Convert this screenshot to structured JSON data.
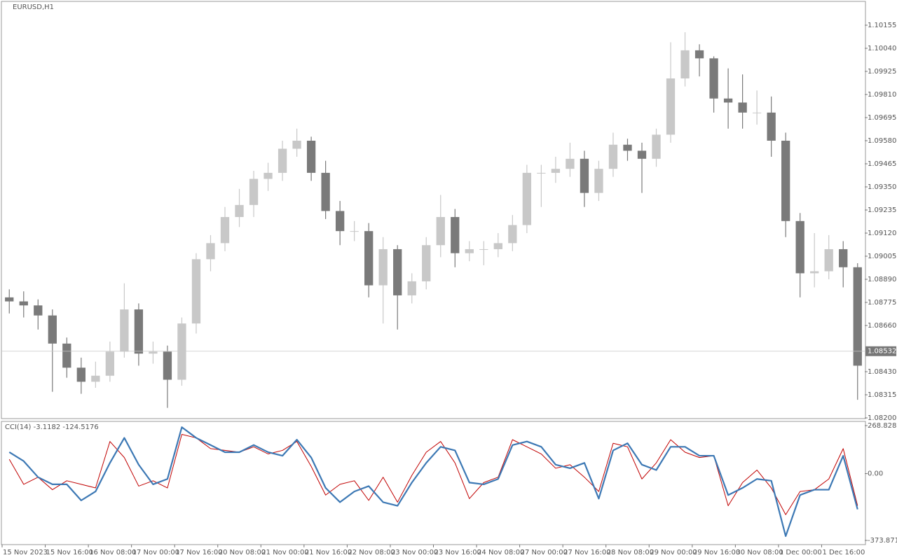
{
  "chart_data": [
    {
      "type": "candlestick",
      "title": "EURUSD,H1",
      "candles": [
        [
          1.088,
          1.0884,
          1.0872,
          1.0878
        ],
        [
          1.0878,
          1.0883,
          1.087,
          1.0876
        ],
        [
          1.0876,
          1.0879,
          1.0864,
          1.0871
        ],
        [
          1.0871,
          1.0874,
          1.0833,
          1.0857
        ],
        [
          1.0857,
          1.086,
          1.084,
          1.0845
        ],
        [
          1.0845,
          1.085,
          1.0832,
          1.0838
        ],
        [
          1.0838,
          1.0848,
          1.0835,
          1.0841
        ],
        [
          1.0841,
          1.0858,
          1.0838,
          1.0853
        ],
        [
          1.0853,
          1.0887,
          1.085,
          1.0874
        ],
        [
          1.0874,
          1.0877,
          1.0846,
          1.0852
        ],
        [
          1.0852,
          1.0858,
          1.0847,
          1.0853
        ],
        [
          1.0853,
          1.0856,
          1.0825,
          1.0839
        ],
        [
          1.0839,
          1.087,
          1.0836,
          1.0867
        ],
        [
          1.0867,
          1.0902,
          1.0862,
          1.0899
        ],
        [
          1.0899,
          1.0911,
          1.0893,
          1.0907
        ],
        [
          1.0907,
          1.0925,
          1.0903,
          1.092
        ],
        [
          1.092,
          1.0934,
          1.0915,
          1.0926
        ],
        [
          1.0926,
          1.0943,
          1.092,
          1.0939
        ],
        [
          1.0939,
          1.0947,
          1.0933,
          1.0942
        ],
        [
          1.0942,
          1.0958,
          1.0938,
          1.0954
        ],
        [
          1.0954,
          1.0964,
          1.095,
          1.0958
        ],
        [
          1.0958,
          1.096,
          1.0938,
          1.0942
        ],
        [
          1.0942,
          1.0948,
          1.0919,
          1.0923
        ],
        [
          1.0923,
          1.0928,
          1.0906,
          1.0913
        ],
        [
          1.0913,
          1.0918,
          1.0908,
          1.0913
        ],
        [
          1.0913,
          1.0917,
          1.088,
          1.0886
        ],
        [
          1.0886,
          1.091,
          1.0867,
          1.0904
        ],
        [
          1.0904,
          1.0906,
          1.0864,
          1.0881
        ],
        [
          1.0881,
          1.0892,
          1.0877,
          1.0888
        ],
        [
          1.0888,
          1.091,
          1.0884,
          1.0906
        ],
        [
          1.0906,
          1.0931,
          1.09,
          1.092
        ],
        [
          1.092,
          1.0924,
          1.0895,
          1.0902
        ],
        [
          1.0902,
          1.0908,
          1.0898,
          1.0904
        ],
        [
          1.0904,
          1.0908,
          1.0896,
          1.0904
        ],
        [
          1.0904,
          1.0912,
          1.09,
          1.0907
        ],
        [
          1.0907,
          1.0921,
          1.0903,
          1.0916
        ],
        [
          1.0916,
          1.0946,
          1.0912,
          1.0942
        ],
        [
          1.0942,
          1.0946,
          1.0925,
          1.0942
        ],
        [
          1.0942,
          1.095,
          1.0937,
          1.0944
        ],
        [
          1.0944,
          1.0957,
          1.094,
          1.0949
        ],
        [
          1.0949,
          1.0953,
          1.0925,
          1.0932
        ],
        [
          1.0932,
          1.0948,
          1.0928,
          1.0944
        ],
        [
          1.0944,
          1.0962,
          1.094,
          1.0956
        ],
        [
          1.0956,
          1.0959,
          1.0948,
          1.0953
        ],
        [
          1.0953,
          1.0957,
          1.0932,
          1.0949
        ],
        [
          1.0949,
          1.0964,
          1.0945,
          1.0961
        ],
        [
          1.0961,
          1.1007,
          1.0957,
          1.0989
        ],
        [
          1.0989,
          1.1012,
          1.0985,
          1.1003
        ],
        [
          1.1003,
          1.1006,
          1.099,
          1.0999
        ],
        [
          1.0999,
          1.1,
          1.0972,
          1.0979
        ],
        [
          1.0979,
          1.0994,
          1.0964,
          1.0977
        ],
        [
          1.0977,
          1.0991,
          1.0964,
          1.0972
        ],
        [
          1.0972,
          1.0983,
          1.0966,
          1.0972
        ],
        [
          1.0972,
          1.098,
          1.095,
          1.0958
        ],
        [
          1.0958,
          1.0962,
          1.091,
          1.0918
        ],
        [
          1.0918,
          1.0922,
          1.088,
          1.0892
        ],
        [
          1.0892,
          1.0912,
          1.0885,
          1.0893
        ],
        [
          1.0893,
          1.0911,
          1.0889,
          1.0904
        ],
        [
          1.0904,
          1.0908,
          1.0885,
          1.0895
        ],
        [
          1.0895,
          1.0897,
          1.0829,
          1.0846
        ]
      ],
      "up_color": "#c8c8c8",
      "down_color": "#7a7a7a",
      "last_price": 1.08532,
      "ylim": [
        1.082,
        1.1027
      ],
      "yticks": [
        1.10155,
        {
          "value": 1.1004,
          "label": "1.10040"
        },
        1.09925,
        {
          "value": 1.0981,
          "label": "1.09810"
        },
        1.09695,
        {
          "value": 1.0958,
          "label": "1.09580"
        },
        1.09465,
        {
          "value": 1.0935,
          "label": "1.09350"
        },
        1.09235,
        {
          "value": 1.0912,
          "label": "1.09120"
        },
        1.09005,
        {
          "value": 1.0889,
          "label": "1.08890"
        },
        1.08775,
        {
          "value": 1.0866,
          "label": "1.08660"
        },
        {
          "value": 1.0843,
          "label": "1.08430"
        },
        1.08315,
        {
          "value": 1.082,
          "label": "1.08200"
        }
      ],
      "x_labels": [
        "15 Nov 2023",
        "15 Nov 16:00",
        "16 Nov 08:00",
        "17 Nov 00:00",
        "17 Nov 16:00",
        "20 Nov 08:00",
        "21 Nov 00:00",
        "21 Nov 16:00",
        "22 Nov 08:00",
        "23 Nov 00:00",
        "23 Nov 16:00",
        "24 Nov 08:00",
        "27 Nov 00:00",
        "27 Nov 16:00",
        "28 Nov 08:00",
        "29 Nov 00:00",
        "29 Nov 16:00",
        "30 Nov 08:00",
        "1 Dec 00:00",
        "1 Dec 16:00"
      ]
    },
    {
      "type": "line",
      "title": "CCI(14) -3.1182 -124.5176",
      "series": [
        {
          "color": "#c00000",
          "values": [
            80,
            -60,
            -20,
            -90,
            -40,
            -60,
            -80,
            180,
            90,
            -70,
            -40,
            -80,
            220,
            200,
            140,
            130,
            120,
            150,
            110,
            130,
            180,
            40,
            -120,
            -60,
            -40,
            -150,
            -20,
            -160,
            -10,
            120,
            180,
            60,
            -140,
            -50,
            -20,
            190,
            150,
            110,
            30,
            50,
            -20,
            -100,
            170,
            150,
            -30,
            60,
            190,
            120,
            90,
            100,
            -180,
            -50,
            20,
            -80,
            -230,
            -100,
            -90,
            -30,
            140,
            -180
          ],
          "width": 1
        },
        {
          "color": "#3c78b4",
          "values": [
            120,
            70,
            -20,
            -60,
            -60,
            -150,
            -100,
            60,
            200,
            50,
            -60,
            -30,
            260,
            200,
            160,
            120,
            120,
            160,
            120,
            100,
            190,
            90,
            -80,
            -160,
            -100,
            -70,
            -160,
            -180,
            -50,
            60,
            150,
            130,
            -50,
            -60,
            -30,
            160,
            180,
            150,
            50,
            30,
            60,
            -140,
            130,
            170,
            50,
            20,
            150,
            150,
            100,
            100,
            -120,
            -80,
            -30,
            -40,
            -350,
            -120,
            -90,
            -90,
            100,
            -200
          ],
          "width": 2.2
        }
      ],
      "ylim": [
        -373.871,
        268.828
      ],
      "yticks": [
        268.828,
        {
          "value": 0,
          "label": "0.00"
        },
        -373.871
      ]
    }
  ]
}
